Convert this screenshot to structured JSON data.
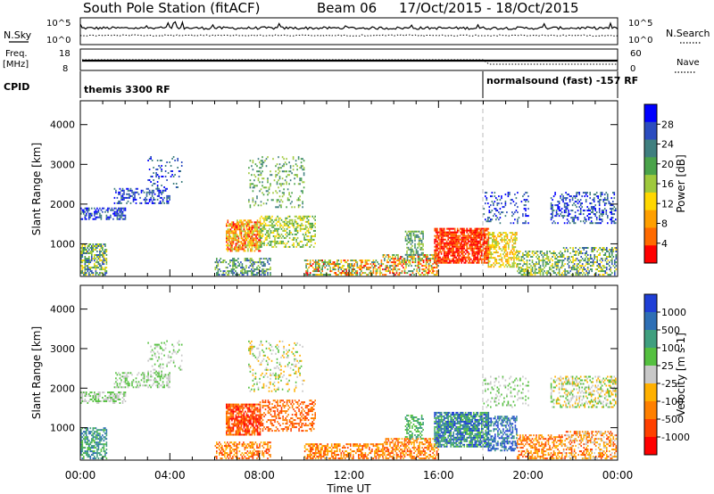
{
  "header": {
    "station": "South Pole Station (fitACF)",
    "beam": "Beam 06",
    "dates": "17/Oct/2015 - 18/Oct/2015"
  },
  "sky_panel": {
    "left_label": "N.Sky",
    "right_label": "N.Search",
    "left_ticks": [
      "10^5",
      "10^0"
    ],
    "right_ticks": [
      "10^5",
      "10^0"
    ]
  },
  "freq_panel": {
    "left_label_1": "Freq.",
    "left_label_2": "[MHz]",
    "left_ticks": [
      "18",
      "8"
    ],
    "right_label": "Nave",
    "right_ticks": [
      "60",
      "0"
    ]
  },
  "cpid_panel": {
    "label": "CPID",
    "segments": [
      "themis 3300 RF",
      "normalsound (fast) -157 RF"
    ]
  },
  "colors": {
    "power": [
      "#0000ff",
      "#2b4cbf",
      "#3f7f7f",
      "#4aa34a",
      "#9fc93c",
      "#ffd700",
      "#ff9f00",
      "#ff6a00",
      "#ff0000"
    ],
    "velocity": [
      "#1f3fd6",
      "#2e6fb5",
      "#3f9f7f",
      "#55c040",
      "#c8c8c8",
      "#ffb000",
      "#ff8000",
      "#ff4000",
      "#ff0000"
    ]
  },
  "chart_data": [
    {
      "type": "heatmap",
      "name": "Power",
      "ylabel": "Slant Range [km]",
      "ylim": [
        180,
        4600
      ],
      "x_ticks": [
        "00:00",
        "04:00",
        "08:00",
        "12:00",
        "16:00",
        "20:00",
        "00:00"
      ],
      "y_ticks": [
        1000,
        2000,
        3000,
        4000
      ],
      "colorbar": {
        "label": "Power [dB]",
        "ticks": [
          "28",
          "24",
          "20",
          "16",
          "12",
          "8",
          "4"
        ]
      }
    },
    {
      "type": "heatmap",
      "name": "Velocity",
      "xlabel": "Time UT",
      "ylabel": "Slant Range [km]",
      "ylim": [
        180,
        4600
      ],
      "x_ticks": [
        "00:00",
        "04:00",
        "08:00",
        "12:00",
        "16:00",
        "20:00",
        "00:00"
      ],
      "y_ticks": [
        1000,
        2000,
        3000,
        4000
      ],
      "colorbar": {
        "label": "Velocity [m s-1]",
        "ticks": [
          "1000",
          "500",
          "100",
          "25",
          "-25",
          "-100",
          "-500",
          "-1000"
        ]
      }
    }
  ]
}
